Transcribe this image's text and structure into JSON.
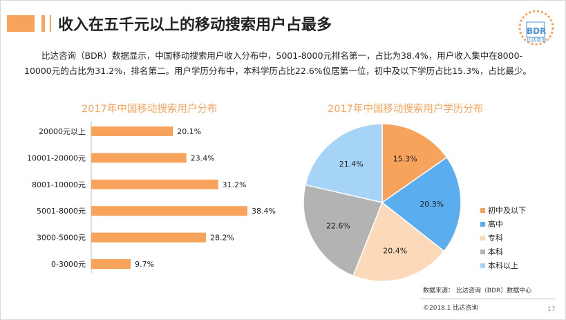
{
  "title": "收入在五千元以上的移动搜索用户占最多",
  "logo": {
    "text": "BDR",
    "sub": "比达咨询"
  },
  "description": "比达咨询（BDR）数据显示，中国移动搜索用户收入分布中，5001-8000元排名第一，占比为38.4%，用户收入集中在8000-10000元的占比为31.2%，排名第二。用户学历分布中，本科学历占比22.6%位居第一位，初中及以下学历占比15.3%，占比最少。",
  "footer": {
    "source": "数据来源： 比达咨询（BDR）数据中心",
    "copyright": "©2018.1    比达咨询",
    "page_number": "17"
  },
  "chart_data": [
    {
      "type": "bar",
      "orientation": "horizontal",
      "title": "2017年中国移动搜索用户分布",
      "categories": [
        "20000元以上",
        "10001-20000元",
        "8001-10000元",
        "5001-8000元",
        "3000-5000元",
        "0-3000元"
      ],
      "values": [
        20.1,
        23.4,
        31.2,
        38.4,
        28.2,
        9.7
      ],
      "labels": [
        "20.1%",
        "23.4%",
        "31.2%",
        "38.4%",
        "28.2%",
        "9.7%"
      ],
      "xlim": [
        0,
        40
      ],
      "color": "#f7a35c",
      "grid": false
    },
    {
      "type": "pie",
      "title": "2017年中国移动搜索用户学历分布",
      "categories": [
        "初中及以下",
        "高中",
        "专科",
        "本科",
        "本科以上"
      ],
      "values": [
        15.3,
        20.3,
        20.4,
        22.6,
        21.4
      ],
      "labels": [
        "15.3%",
        "20.3%",
        "20.4%",
        "22.6%",
        "21.4%"
      ],
      "colors": [
        "#f7a35c",
        "#5aaef0",
        "#fcd9b8",
        "#b3b3b3",
        "#a6d4f7"
      ],
      "legend_position": "right"
    }
  ]
}
